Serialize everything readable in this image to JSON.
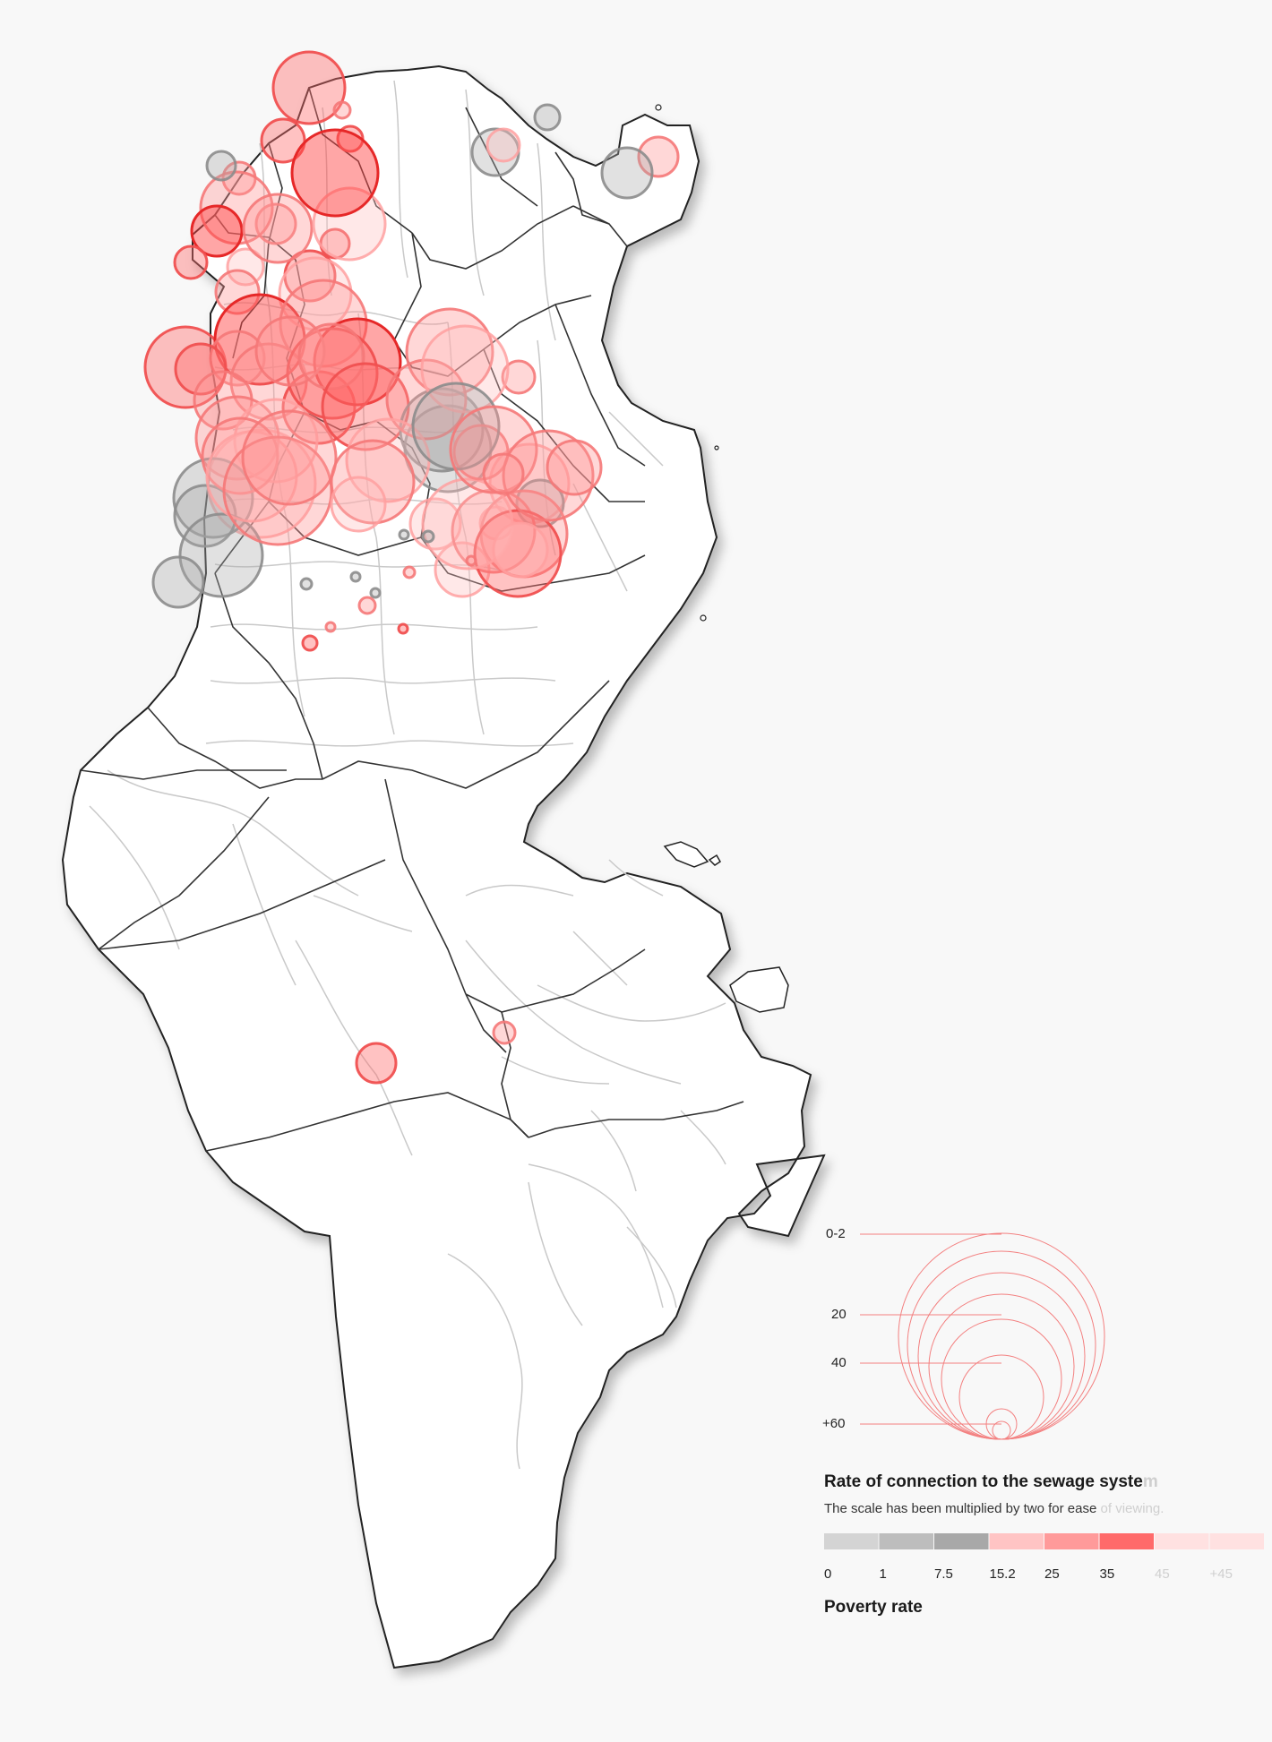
{
  "legend": {
    "size_labels": [
      "0-2",
      "20",
      "40",
      "+60"
    ],
    "title_main": "Rate of connection to the sewage syste",
    "title_fade": "m",
    "subtitle_main": "The scale has been multiplied by two for ease",
    "subtitle_fade": " of viewing.",
    "color_scale_labels": [
      "0",
      "1",
      "7.5",
      "15.2",
      "25",
      "35",
      "45",
      "+45"
    ],
    "color_scale_faded": [
      false,
      false,
      false,
      false,
      false,
      false,
      true,
      true
    ],
    "color_scale_swatches": [
      "#d4d4d4",
      "#bdbdbd",
      "#a8a8a8",
      "#ffc4c4",
      "#ff9a9a",
      "#ff6a6a",
      "#ffe1e1",
      "#ffe1e1"
    ],
    "poverty_label": "Poverty rate"
  },
  "colors": {
    "gray_fill": "#b0b0b0",
    "gray_stroke": "#8c8c8c",
    "red_fill": "#ff8080",
    "red_stroke": "#f25a5a",
    "legend_line": "#f38080"
  },
  "map_data": {
    "bubble_levels": [
      "gray",
      "pink-light",
      "pink",
      "red",
      "red-dark"
    ],
    "bubbles": [
      {
        "level": "red",
        "r": 22
      },
      {
        "level": "pink",
        "r": 12
      },
      {
        "level": "red",
        "r": 40
      },
      {
        "level": "red",
        "r": 14
      },
      {
        "level": "pink",
        "r": 9
      },
      {
        "level": "gray",
        "r": 26
      },
      {
        "level": "pink-light",
        "r": 18
      },
      {
        "level": "gray",
        "r": 14
      },
      {
        "level": "pink",
        "r": 22
      },
      {
        "level": "gray",
        "r": 28
      },
      {
        "level": "red",
        "r": 24
      },
      {
        "level": "pink",
        "r": 18
      },
      {
        "level": "pink",
        "r": 22
      },
      {
        "level": "pink",
        "r": 40
      },
      {
        "level": "red-dark",
        "r": 28
      },
      {
        "level": "red",
        "r": 16
      },
      {
        "level": "pink-light",
        "r": 20
      },
      {
        "level": "gray",
        "r": 16
      },
      {
        "level": "pink",
        "r": 24
      },
      {
        "level": "red",
        "r": 28
      },
      {
        "level": "pink-light",
        "r": 40
      },
      {
        "level": "pink",
        "r": 38
      },
      {
        "level": "pink-light",
        "r": 40
      },
      {
        "level": "red",
        "r": 18
      },
      {
        "level": "red",
        "r": 45
      },
      {
        "level": "red-dark",
        "r": 48
      },
      {
        "level": "red-dark",
        "r": 50
      },
      {
        "level": "pink",
        "r": 30
      },
      {
        "level": "red",
        "r": 28
      },
      {
        "level": "pink",
        "r": 48
      },
      {
        "level": "pink",
        "r": 42
      },
      {
        "level": "pink",
        "r": 32
      },
      {
        "level": "red",
        "r": 40
      },
      {
        "level": "pink-light",
        "r": 60
      },
      {
        "level": "pink",
        "r": 46
      },
      {
        "level": "gray",
        "r": 44
      },
      {
        "level": "gray",
        "r": 34
      },
      {
        "level": "gray",
        "r": 46
      },
      {
        "level": "gray",
        "r": 28
      },
      {
        "level": "red-dark",
        "r": 48
      },
      {
        "level": "red",
        "r": 50
      },
      {
        "level": "pink",
        "r": 38
      },
      {
        "level": "pink",
        "r": 36
      },
      {
        "level": "pink-light",
        "r": 46
      },
      {
        "level": "pink",
        "r": 42
      },
      {
        "level": "pink-light",
        "r": 50
      },
      {
        "level": "pink",
        "r": 60
      },
      {
        "level": "pink",
        "r": 52
      },
      {
        "level": "red",
        "r": 48
      },
      {
        "level": "pink",
        "r": 48
      },
      {
        "level": "gray",
        "r": 48
      },
      {
        "level": "gray",
        "r": 46
      },
      {
        "level": "pink",
        "r": 44
      },
      {
        "level": "pink-light",
        "r": 46
      },
      {
        "level": "pink",
        "r": 46
      },
      {
        "level": "pink-light",
        "r": 30
      },
      {
        "level": "pink-light",
        "r": 28
      },
      {
        "level": "pink-light",
        "r": 18
      },
      {
        "level": "pink-light",
        "r": 30
      },
      {
        "level": "pink-light",
        "r": 44
      },
      {
        "level": "gray",
        "r": 26
      },
      {
        "level": "pink",
        "r": 48
      },
      {
        "level": "pink",
        "r": 46
      },
      {
        "level": "red",
        "r": 48
      },
      {
        "level": "pink-light",
        "r": 50
      },
      {
        "level": "pink-light",
        "r": 30
      },
      {
        "level": "pink",
        "r": 30
      },
      {
        "level": "pink",
        "r": 18
      },
      {
        "level": "pink-light",
        "r": 48
      },
      {
        "level": "gray",
        "r": 48
      },
      {
        "level": "pink",
        "r": 48
      },
      {
        "level": "pink",
        "r": 50
      },
      {
        "level": "pink",
        "r": 30
      },
      {
        "level": "pink",
        "r": 22
      },
      {
        "level": "gray",
        "r": 5
      },
      {
        "level": "gray",
        "r": 6
      },
      {
        "level": "pink",
        "r": 6
      },
      {
        "level": "pink",
        "r": 5
      },
      {
        "level": "red",
        "r": 5
      },
      {
        "level": "gray",
        "r": 5
      },
      {
        "level": "pink",
        "r": 9
      },
      {
        "level": "gray",
        "r": 5
      },
      {
        "level": "pink",
        "r": 5
      },
      {
        "level": "red",
        "r": 8
      },
      {
        "level": "gray",
        "r": 6
      }
    ]
  }
}
